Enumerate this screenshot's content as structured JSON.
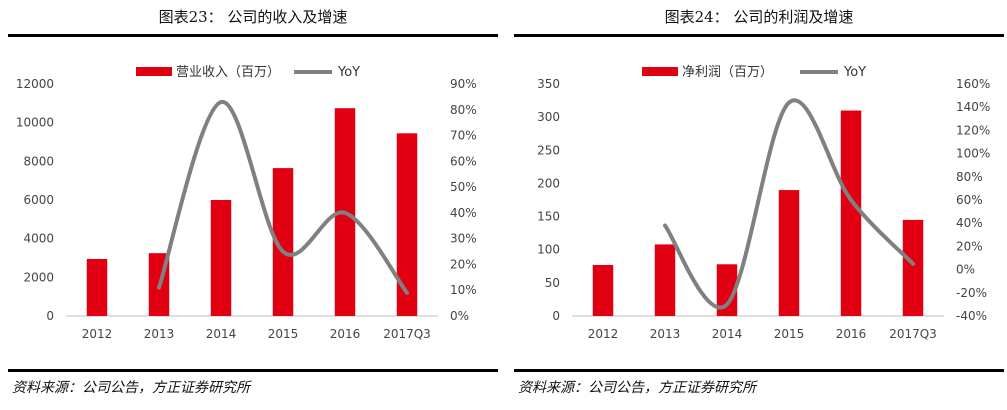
{
  "charts": [
    {
      "title": "图表23：  公司的收入及增速",
      "source": "资料来源：公司公告，方正证券研究所"
    },
    {
      "title": "图表24：  公司的利润及增速",
      "source": "资料来源：公司公告，方正证券研究所"
    }
  ],
  "chart_data": [
    {
      "type": "bar",
      "title": "图表23：  公司的收入及增速",
      "categories": [
        "2012",
        "2013",
        "2014",
        "2015",
        "2016",
        "2017Q3"
      ],
      "series": [
        {
          "name": "营业收入（百万）",
          "type": "bar",
          "axis": "left",
          "color": "#e00012",
          "values": [
            2950,
            3250,
            6000,
            7650,
            10750,
            9450
          ]
        },
        {
          "name": "YoY",
          "type": "line",
          "axis": "right",
          "color": "#808080",
          "values": [
            null,
            11,
            83,
            25,
            40,
            9
          ]
        }
      ],
      "y_left": {
        "min": 0,
        "max": 12000,
        "ticks": [
          "0",
          "2000",
          "4000",
          "6000",
          "8000",
          "10000",
          "12000"
        ]
      },
      "y_right": {
        "min": 0,
        "max": 90,
        "ticks": [
          "0%",
          "10%",
          "20%",
          "30%",
          "40%",
          "50%",
          "60%",
          "70%",
          "80%",
          "90%"
        ]
      },
      "legend": "top",
      "grid": false
    },
    {
      "type": "bar",
      "title": "图表24：  公司的利润及增速",
      "categories": [
        "2012",
        "2013",
        "2014",
        "2015",
        "2016",
        "2017Q3"
      ],
      "series": [
        {
          "name": "净利润（百万）",
          "type": "bar",
          "axis": "left",
          "color": "#e00012",
          "values": [
            77,
            108,
            78,
            190,
            310,
            145
          ]
        },
        {
          "name": "YoY",
          "type": "line",
          "axis": "right",
          "color": "#808080",
          "values": [
            null,
            38,
            -30,
            144,
            60,
            5
          ]
        }
      ],
      "y_left": {
        "min": 0,
        "max": 350,
        "ticks": [
          "0",
          "50",
          "100",
          "150",
          "200",
          "250",
          "300",
          "350"
        ]
      },
      "y_right": {
        "min": -40,
        "max": 160,
        "ticks": [
          "-40%",
          "-20%",
          "0%",
          "20%",
          "40%",
          "60%",
          "80%",
          "100%",
          "120%",
          "140%",
          "160%"
        ]
      },
      "legend": "top",
      "grid": false
    }
  ]
}
